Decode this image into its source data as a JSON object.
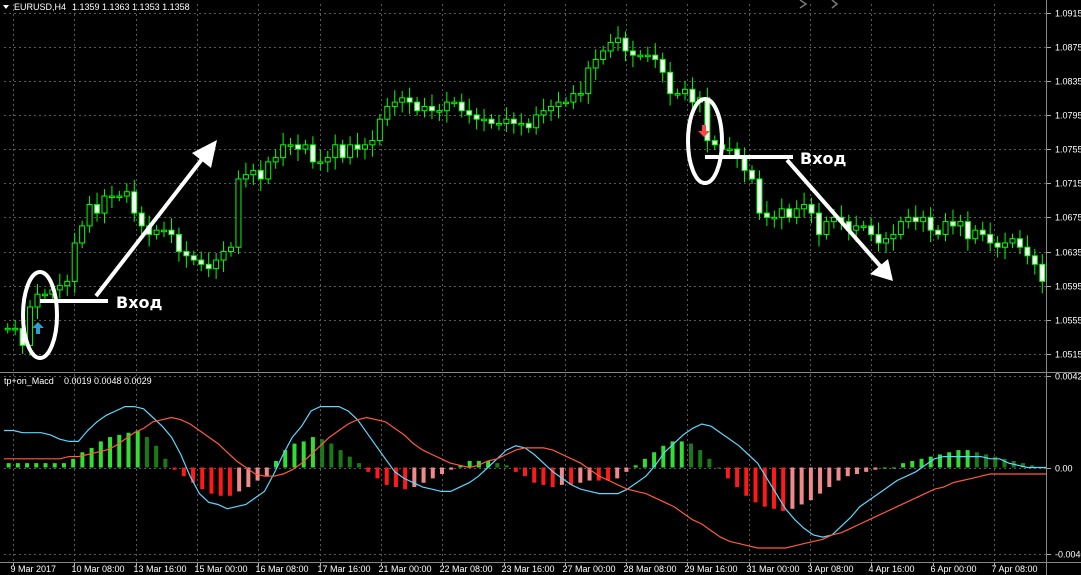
{
  "header": {
    "symbol": "EURUSD,H4",
    "ohlc": "1.1359 1.1363 1.1353 1.1358",
    "indicator": "tp+on_Macd",
    "indicator_values": "0.0019 0.0048 0.0029"
  },
  "annotations": {
    "entry_long_label": "Вход",
    "entry_short_label": "Вход"
  },
  "colors": {
    "background": "#000000",
    "grid": "#5a5a5a",
    "candle": "#00ff00",
    "candle_hollow": "#ffffff",
    "macd_pos_dark": "#1a7a1a",
    "macd_pos_light": "#33dd33",
    "macd_neg_red": "#ff1a1a",
    "macd_neg_pink": "#f08a8a",
    "macd_line": "#5ad8ff",
    "signal_line": "#ff5a3a",
    "buy_arrow": "#2a9fd6",
    "sell_arrow": "#ff4444",
    "annotation": "#ffffff"
  },
  "chart_data": [
    {
      "type": "candlestick",
      "title": "EURUSD,H4",
      "y_ticks": [
        "1.0915",
        "1.0875",
        "1.0835",
        "1.0795",
        "1.0755",
        "1.0715",
        "1.0675",
        "1.0635",
        "1.0595",
        "1.0555",
        "1.0515"
      ],
      "ylim": [
        1.0495,
        1.0925
      ],
      "x_tick_labels": [
        "9 Mar 2017",
        "10 Mar 08:00",
        "13 Mar 16:00",
        "15 Mar 00:00",
        "16 Mar 08:00",
        "17 Mar 16:00",
        "21 Mar 00:00",
        "22 Mar 08:00",
        "23 Mar 16:00",
        "27 Mar 00:00",
        "28 Mar 08:00",
        "29 Mar 16:00",
        "31 Mar 00:00",
        "3 Apr 08:00",
        "4 Apr 16:00",
        "6 Apr 00:00",
        "7 Apr 08:00"
      ],
      "series": [
        {
          "close": [
            1.0545,
            1.0545,
            1.0525,
            1.057,
            1.0585,
            1.0585,
            1.059,
            1.0595,
            1.06,
            1.0645,
            1.0665,
            1.069,
            1.068,
            1.07,
            1.07,
            1.07,
            1.0705,
            1.068,
            1.0665,
            1.0655,
            1.066,
            1.066,
            1.0655,
            1.0635,
            1.063,
            1.0625,
            1.062,
            1.0615,
            1.0625,
            1.0635,
            1.064,
            1.072,
            1.0725,
            1.073,
            1.072,
            1.074,
            1.0745,
            1.076,
            1.076,
            1.0755,
            1.076,
            1.074,
            1.074,
            1.0745,
            1.076,
            1.0745,
            1.076,
            1.0755,
            1.076,
            1.0765,
            1.079,
            1.0805,
            1.081,
            1.0815,
            1.081,
            1.08,
            1.0805,
            1.08,
            1.08,
            1.081,
            1.081,
            1.08,
            1.0795,
            1.079,
            1.079,
            1.0785,
            1.0785,
            1.079,
            1.0785,
            1.0785,
            1.078,
            1.0795,
            1.08,
            1.0805,
            1.081,
            1.081,
            1.082,
            1.082,
            1.085,
            1.086,
            1.087,
            1.088,
            1.0885,
            1.087,
            1.0865,
            1.0865,
            1.0865,
            1.086,
            1.0845,
            1.082,
            1.082,
            1.0825,
            1.081,
            1.0815,
            1.0765,
            1.076,
            1.0755,
            1.0755,
            1.0745,
            1.073,
            1.072,
            1.068,
            1.0675,
            1.0675,
            1.0685,
            1.0675,
            1.0685,
            1.069,
            1.068,
            1.0655,
            1.067,
            1.0675,
            1.067,
            1.066,
            1.0665,
            1.0665,
            1.0655,
            1.0645,
            1.065,
            1.0655,
            1.067,
            1.0675,
            1.067,
            1.0675,
            1.066,
            1.0655,
            1.067,
            1.0665,
            1.067,
            1.065,
            1.066,
            1.0655,
            1.0645,
            1.064,
            1.0645,
            1.065,
            1.064,
            1.063,
            1.062,
            1.06
          ]
        }
      ]
    },
    {
      "type": "bar",
      "title": "tp+on_Macd",
      "y_ticks": [
        "0.0042",
        "0.00",
        "-0.0040"
      ],
      "ylim": [
        -0.0043,
        0.0043
      ],
      "series": [
        {
          "name": "MACD",
          "values": [
            0.0017,
            0.0017,
            0.0016,
            0.0016,
            0.0016,
            0.0015,
            0.0013,
            0.0012,
            0.0012,
            0.0017,
            0.0021,
            0.0024,
            0.0026,
            0.0028,
            0.0028,
            0.0027,
            0.0023,
            0.0019,
            0.0014,
            0.0006,
            -0.0004,
            -0.0012,
            -0.0016,
            -0.0017,
            -0.0019,
            -0.0018,
            -0.0017,
            -0.0014,
            -0.0011,
            -0.0003,
            0.0006,
            0.0014,
            0.0019,
            0.0026,
            0.0028,
            0.0028,
            0.0028,
            0.0026,
            0.0022,
            0.0016,
            0.001,
            0.0004,
            -0.0002,
            -0.0005,
            -0.0007,
            -0.0009,
            -0.001,
            -0.0011,
            -0.0011,
            -0.0009,
            -0.0007,
            -0.0004,
            0.0,
            0.0004,
            0.0008,
            0.001,
            0.0009,
            0.0006,
            0.0002,
            -0.0002,
            -0.0005,
            -0.0008,
            -0.001,
            -0.0011,
            -0.0012,
            -0.0012,
            -0.0012,
            -0.001,
            -0.0007,
            -0.0004,
            0.0001,
            0.0007,
            0.0011,
            0.0015,
            0.0018,
            0.002,
            0.0019,
            0.0016,
            0.0013,
            0.001,
            0.0006,
            0.0002,
            -0.0005,
            -0.0012,
            -0.0019,
            -0.0024,
            -0.0028,
            -0.0031,
            -0.0032,
            -0.0031,
            -0.0027,
            -0.0023,
            -0.0018,
            -0.0015,
            -0.0012,
            -0.0009,
            -0.0006,
            -0.0004,
            -0.0002,
            0.0001,
            0.0004,
            0.0005,
            0.0005,
            0.0005,
            0.0005,
            0.0005,
            0.0004,
            0.0004,
            0.0002,
            0.0001,
            0.0,
            0.0,
            0.0
          ]
        },
        {
          "name": "Signal",
          "values": [
            0.0004,
            0.0004,
            0.0004,
            0.0004,
            0.0004,
            0.0004,
            0.0004,
            0.0005,
            0.0005,
            0.0006,
            0.0007,
            0.0008,
            0.001,
            0.0013,
            0.0016,
            0.0018,
            0.0021,
            0.0022,
            0.0023,
            0.0022,
            0.002,
            0.0017,
            0.0014,
            0.0011,
            0.0007,
            0.0003,
            0.0,
            -0.0003,
            -0.0004,
            -0.0004,
            -0.0003,
            -0.0001,
            0.0002,
            0.0006,
            0.001,
            0.0014,
            0.0017,
            0.002,
            0.0022,
            0.0023,
            0.0022,
            0.0021,
            0.0018,
            0.0015,
            0.0011,
            0.0008,
            0.0006,
            0.0004,
            0.0002,
            0.0001,
            0.0,
            0.0001,
            0.0003,
            0.0004,
            0.0006,
            0.0008,
            0.0009,
            0.0009,
            0.0009,
            0.0008,
            0.0006,
            0.0004,
            0.0002,
            -0.0001,
            -0.0004,
            -0.0006,
            -0.0008,
            -0.001,
            -0.0011,
            -0.0012,
            -0.0014,
            -0.0016,
            -0.0018,
            -0.0021,
            -0.0024,
            -0.0026,
            -0.0029,
            -0.0032,
            -0.0034,
            -0.0035,
            -0.0036,
            -0.0037,
            -0.0037,
            -0.0037,
            -0.0037,
            -0.0036,
            -0.0035,
            -0.0034,
            -0.0033,
            -0.0031,
            -0.003,
            -0.0028,
            -0.0026,
            -0.0024,
            -0.0022,
            -0.002,
            -0.0018,
            -0.0016,
            -0.0014,
            -0.0012,
            -0.001,
            -0.0009,
            -0.0007,
            -0.0006,
            -0.0005,
            -0.0004,
            -0.0003,
            -0.0003,
            -0.0003,
            -0.0003,
            -0.0003,
            -0.0003,
            -0.0003
          ]
        },
        {
          "name": "Histogram",
          "values": [
            0.0002,
            0.0002,
            0.0002,
            0.0002,
            0.0002,
            0.0002,
            0.0002,
            0.0004,
            0.0007,
            0.0009,
            0.0012,
            0.0014,
            0.0015,
            0.0016,
            0.0017,
            0.0014,
            0.001,
            0.0004,
            -0.0001,
            -0.0004,
            -0.0007,
            -0.001,
            -0.0012,
            -0.0013,
            -0.0013,
            -0.0011,
            -0.0009,
            -0.0006,
            -0.0004,
            0.0003,
            0.0008,
            0.0011,
            0.0012,
            0.0014,
            0.0013,
            0.0011,
            0.0008,
            0.0005,
            0.0002,
            -0.0002,
            -0.0005,
            -0.0008,
            -0.0009,
            -0.001,
            -0.0009,
            -0.0007,
            -0.0005,
            -0.0003,
            -0.0001,
            0.0001,
            0.0003,
            0.0003,
            0.0003,
            0.0002,
            0.0001,
            -0.0002,
            -0.0004,
            -0.0007,
            -0.0008,
            -0.0009,
            -0.0008,
            -0.0008,
            -0.0007,
            -0.0006,
            -0.0006,
            -0.0006,
            -0.0005,
            -0.0002,
            0.0001,
            0.0004,
            0.0007,
            0.001,
            0.0012,
            0.0012,
            0.0011,
            0.0008,
            0.0004,
            0.0,
            -0.0005,
            -0.0009,
            -0.0013,
            -0.0016,
            -0.0018,
            -0.0019,
            -0.002,
            -0.0019,
            -0.0017,
            -0.0015,
            -0.0012,
            -0.0009,
            -0.0006,
            -0.0004,
            -0.0003,
            -0.0002,
            -0.0001,
            0.0,
            0.0,
            0.0002,
            0.0003,
            0.0004,
            0.0005,
            0.0006,
            0.0007,
            0.0008,
            0.0008,
            0.0007,
            0.0006,
            0.0005,
            0.0004,
            0.0003,
            0.0002,
            0.0001,
            0.0
          ]
        }
      ]
    }
  ]
}
